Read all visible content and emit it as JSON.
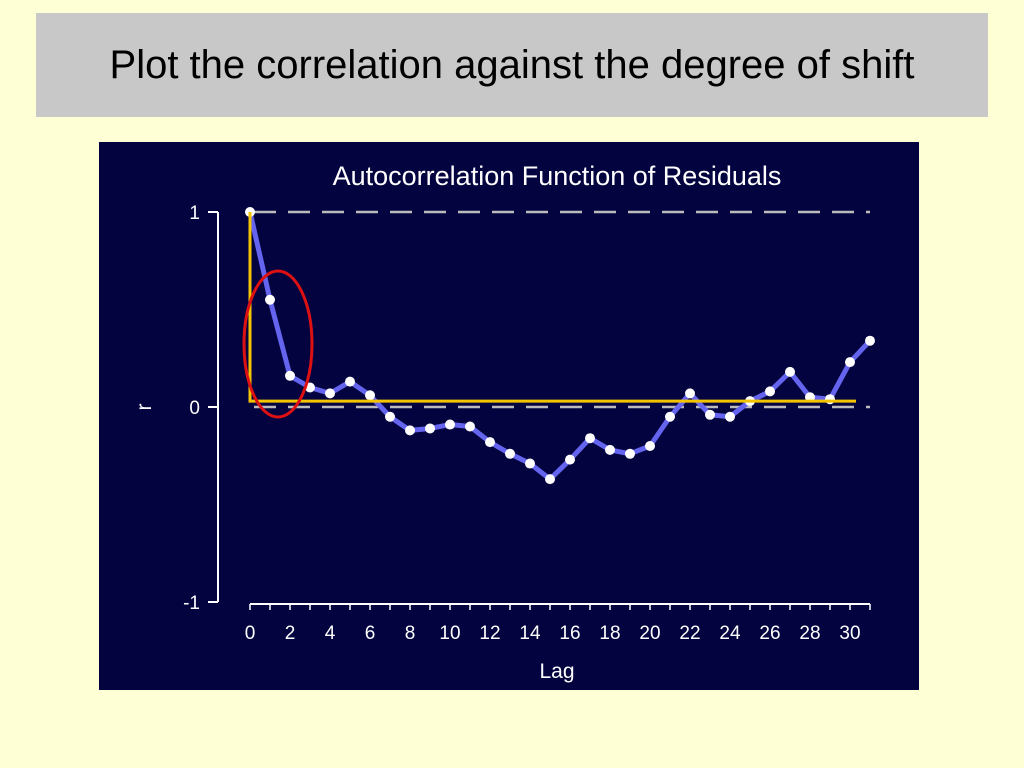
{
  "slide": {
    "title": "Plot the correlation against the degree of shift",
    "background": "#ffffd6",
    "title_background": "#c8c8c8"
  },
  "chart_data": {
    "type": "line",
    "title": "Autocorrelation Function of Residuals",
    "xlabel": "Lag",
    "ylabel": "r",
    "xlim": [
      0,
      31
    ],
    "ylim": [
      -1,
      1
    ],
    "x_ticks": [
      "0",
      "2",
      "4",
      "6",
      "8",
      "10",
      "12",
      "14",
      "16",
      "18",
      "20",
      "22",
      "24",
      "26",
      "28",
      "30"
    ],
    "y_ticks": [
      "1",
      "0",
      "-1"
    ],
    "grid": "dashed reference lines at r = 1 and r = 0",
    "series": [
      {
        "x": [
          0,
          1,
          2,
          3,
          4,
          5,
          6,
          7,
          8,
          9,
          10,
          11,
          12,
          13,
          14,
          15,
          16,
          17,
          18,
          19,
          20,
          21,
          22,
          23,
          24,
          25,
          26,
          27,
          28,
          29,
          30,
          31
        ],
        "values": [
          1.0,
          0.55,
          0.16,
          0.1,
          0.07,
          0.13,
          0.06,
          -0.05,
          -0.12,
          -0.11,
          -0.09,
          -0.1,
          -0.18,
          -0.24,
          -0.29,
          -0.37,
          -0.27,
          -0.16,
          -0.22,
          -0.24,
          -0.2,
          -0.05,
          0.07,
          -0.04,
          -0.05,
          0.03,
          0.08,
          0.18,
          0.05,
          0.04,
          0.23,
          0.34
        ]
      }
    ],
    "annotations": {
      "ellipse": {
        "around_lags": [
          1,
          2
        ],
        "color": "#dd1111"
      },
      "l_shape": {
        "from_lag": 0,
        "to_lag": 30.3,
        "level_r": 0.03,
        "color": "#f5c400"
      }
    },
    "colors": {
      "background": "#03033f",
      "line": "#6464ee",
      "points": "#ffffff",
      "reference_lines": "#bbbbbb",
      "axes": "#ffffff"
    }
  }
}
